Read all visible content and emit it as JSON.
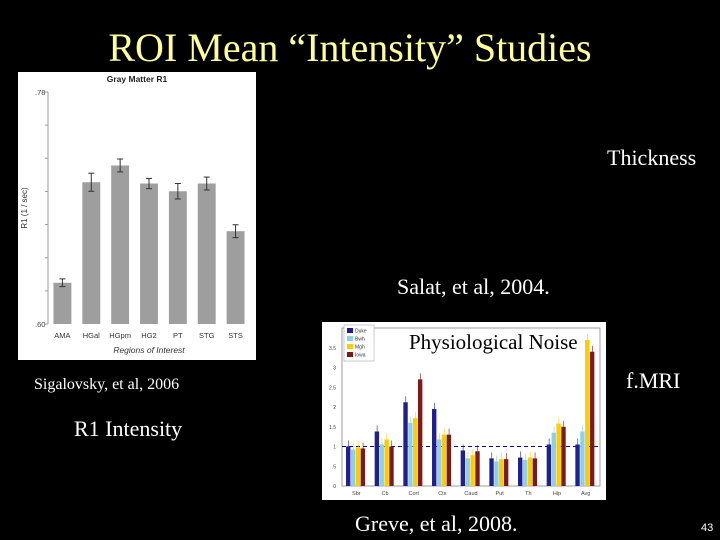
{
  "slide": {
    "title": "ROI Mean “Intensity” Studies",
    "labels": {
      "thickness": "Thickness",
      "salat": "Salat, et al, 2004.",
      "physiological_noise": "Physiological Noise",
      "fmri": "f.MRI",
      "sigalovsky": "Sigalovsky, et al, 2006",
      "r1_intensity": "R1 Intensity",
      "greve": "Greve, et al, 2008."
    },
    "page_number": "43"
  },
  "chart_data": [
    {
      "type": "bar",
      "title": "Gray Matter R1",
      "xlabel": "Regions of Interest",
      "ylabel": "R1 (1 / sec)",
      "ylim": [
        0.6,
        0.78
      ],
      "yticks": [
        ".60",
        ".78"
      ],
      "categories": [
        "AMA",
        "HGal",
        "HGpm",
        "HG2",
        "PT",
        "STG",
        "STS"
      ],
      "values": [
        0.632,
        0.71,
        0.723,
        0.709,
        0.703,
        0.709,
        0.672
      ],
      "errors": [
        0.003,
        0.007,
        0.005,
        0.004,
        0.006,
        0.005,
        0.005
      ],
      "grid": false,
      "colors": {
        "bar": "#9e9e9e",
        "error": "#333333"
      }
    },
    {
      "type": "bar",
      "ylim": [
        0,
        4
      ],
      "yticks": [
        "0",
        ".5",
        "1",
        "1.5",
        "2",
        "2.5",
        "3",
        "3.5"
      ],
      "categories": [
        "Sbr",
        "Cb",
        "Cort",
        "Ctx",
        "Caud",
        "Put",
        "Th",
        "Hip",
        "Avg"
      ],
      "series": [
        {
          "name": "Duke",
          "color": "#1f1f8f",
          "values": [
            1.0,
            1.38,
            2.12,
            1.95,
            0.9,
            0.7,
            0.72,
            1.05,
            1.05
          ]
        },
        {
          "name": "Bwh",
          "color": "#8fd0e6",
          "values": [
            0.92,
            1.05,
            1.6,
            1.18,
            0.7,
            0.62,
            0.66,
            1.35,
            1.38
          ]
        },
        {
          "name": "Mgh",
          "color": "#ffcc00",
          "values": [
            0.98,
            1.18,
            1.72,
            1.3,
            0.78,
            0.68,
            0.72,
            1.58,
            3.7
          ]
        },
        {
          "name": "Iowa",
          "color": "#7a1a1a",
          "values": [
            0.95,
            1.0,
            2.7,
            1.3,
            0.88,
            0.68,
            0.7,
            1.5,
            3.4
          ]
        }
      ],
      "reference_line": 1.0,
      "colors": {
        "reference_line": "#00008b"
      }
    }
  ]
}
